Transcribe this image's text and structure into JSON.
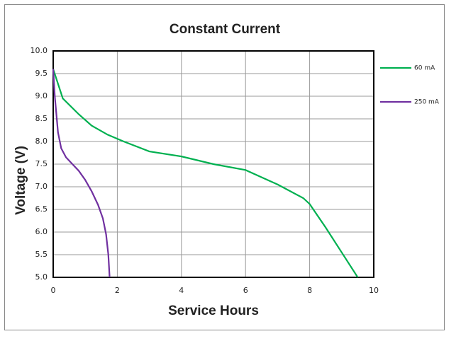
{
  "chart_data": {
    "type": "line",
    "title": "Constant Current",
    "x_label": "Service Hours",
    "y_label": "Voltage (V)",
    "xlim": [
      0,
      10
    ],
    "xticks": [
      0,
      2,
      4,
      6,
      8,
      10
    ],
    "ylim": [
      5,
      10
    ],
    "yticks": [
      {
        "value": 5,
        "label": "5.0"
      },
      {
        "value": 5.5,
        "label": "5.5"
      },
      {
        "value": 6,
        "label": "6.0"
      },
      {
        "value": 6.5,
        "label": "6.5"
      },
      {
        "value": 7,
        "label": "7.0"
      },
      {
        "value": 7.5,
        "label": "7.5"
      },
      {
        "value": 8,
        "label": "8.0"
      },
      {
        "value": 8.5,
        "label": "8.5"
      },
      {
        "value": 9,
        "label": "9.0"
      },
      {
        "value": 9.5,
        "label": "9.5"
      },
      {
        "value": 10,
        "label": "10.0"
      }
    ],
    "grid": true,
    "legend": "right",
    "series": [
      {
        "name": "60 mA",
        "color": "#00b050",
        "x": [
          0,
          0.3,
          0.8,
          1.2,
          1.7,
          2.2,
          3,
          4,
          5,
          6,
          7,
          7.8,
          8,
          8.5,
          9,
          9.5
        ],
        "values": [
          9.6,
          8.95,
          8.6,
          8.35,
          8.15,
          8.0,
          7.78,
          7.67,
          7.5,
          7.37,
          7.05,
          6.75,
          6.62,
          6.1,
          5.55,
          5.0
        ]
      },
      {
        "name": "250 mA",
        "color": "#7030a0",
        "x": [
          0,
          0.05,
          0.15,
          0.25,
          0.4,
          0.6,
          0.8,
          1.0,
          1.2,
          1.4,
          1.55,
          1.65,
          1.72,
          1.76
        ],
        "values": [
          9.6,
          9.0,
          8.2,
          7.85,
          7.65,
          7.5,
          7.35,
          7.15,
          6.9,
          6.6,
          6.3,
          5.95,
          5.5,
          5.0
        ]
      }
    ]
  }
}
